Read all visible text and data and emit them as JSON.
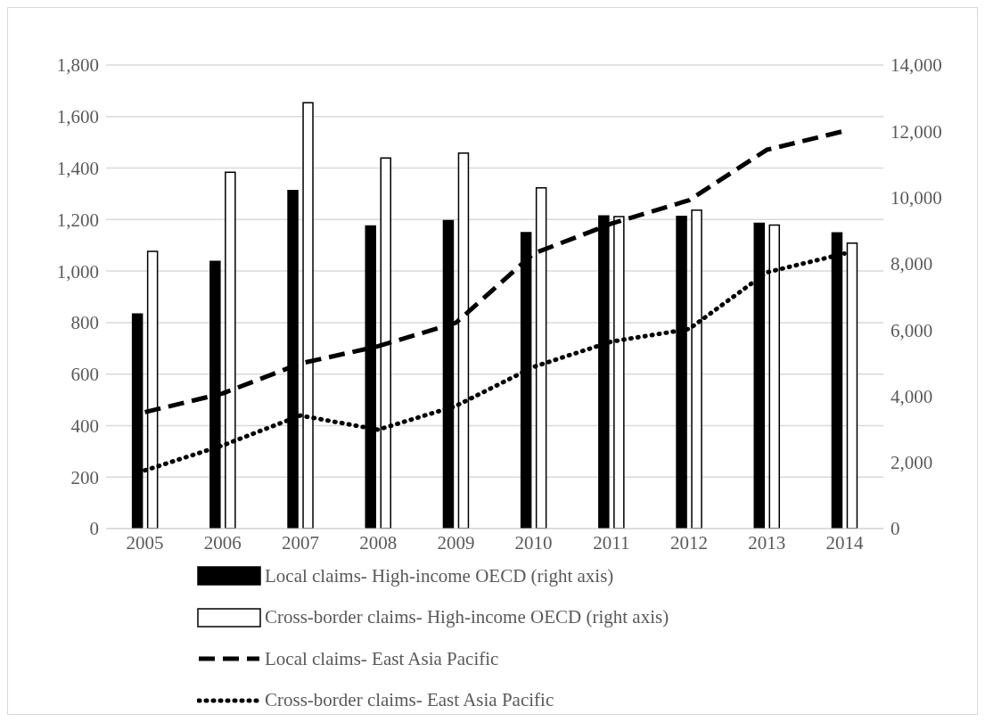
{
  "chart_data": {
    "type": "bar",
    "categories": [
      "2005",
      "2006",
      "2007",
      "2008",
      "2009",
      "2010",
      "2011",
      "2012",
      "2013",
      "2014"
    ],
    "series": [
      {
        "name": "Local claims- High-income OECD (right axis)",
        "axis": "y2",
        "color": "#000000",
        "values": [
          6480,
          8070,
          10210,
          9140,
          9300,
          8940,
          9440,
          9430,
          9220,
          8930
        ]
      },
      {
        "name": "Cross-border claims- High-income OECD (right axis)",
        "axis": "y2",
        "color": "#ffffff",
        "values": [
          8370,
          10760,
          12860,
          11190,
          11340,
          10290,
          9420,
          9620,
          9170,
          8620
        ]
      },
      {
        "name": "Local claims- East Asia Pacific",
        "type": "line",
        "color": "#000000",
        "line_style": "dashed",
        "values": [
          452,
          525,
          641,
          708,
          799,
          1068,
          1184,
          1275,
          1471,
          1544
        ]
      },
      {
        "name": "Cross-border claims- East Asia Pacific",
        "type": "line",
        "color": "#000000",
        "line_style": "dotted",
        "values": [
          226,
          323,
          439,
          384,
          476,
          628,
          726,
          775,
          995,
          1068
        ]
      }
    ],
    "ylim": [
      0,
      1800
    ],
    "yticks": [
      {
        "value": 0,
        "label": "0"
      },
      {
        "value": 200,
        "label": "200"
      },
      {
        "value": 400,
        "label": "400"
      },
      {
        "value": 600,
        "label": "600"
      },
      {
        "value": 800,
        "label": "800"
      },
      {
        "value": 1000,
        "label": "1,000"
      },
      {
        "value": 1200,
        "label": "1,200"
      },
      {
        "value": 1400,
        "label": "1,400"
      },
      {
        "value": 1600,
        "label": "1,600"
      },
      {
        "value": 1800,
        "label": "1,800"
      }
    ],
    "y2lim": [
      0,
      14000
    ],
    "y2ticks": [
      {
        "value": 0,
        "label": "0"
      },
      {
        "value": 2000,
        "label": "2,000"
      },
      {
        "value": 4000,
        "label": "4,000"
      },
      {
        "value": 6000,
        "label": "6,000"
      },
      {
        "value": 8000,
        "label": "8,000"
      },
      {
        "value": 10000,
        "label": "10,000"
      },
      {
        "value": 12000,
        "label": "12,000"
      },
      {
        "value": 14000,
        "label": "14,000"
      }
    ],
    "grid": "y",
    "legend": "bottom",
    "marker": "none"
  }
}
